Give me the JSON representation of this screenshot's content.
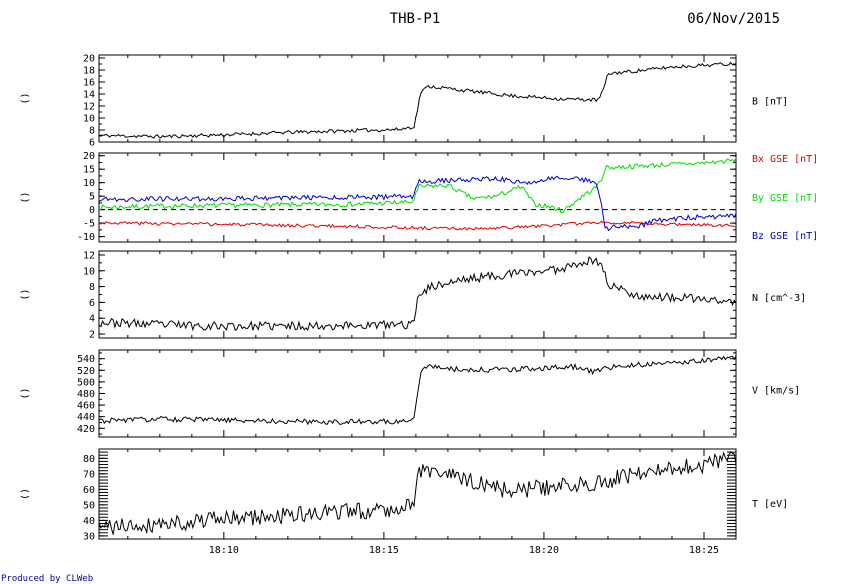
{
  "header": {
    "title": "THB-P1",
    "date": "06/Nov/2015"
  },
  "footer": {
    "credit": "Produced by CLWeb"
  },
  "x_ticks": [
    {
      "label": "18:10",
      "t": 10
    },
    {
      "label": "18:15",
      "t": 15
    },
    {
      "label": "18:20",
      "t": 20
    },
    {
      "label": "18:25",
      "t": 25
    }
  ],
  "colors": {
    "black": "#000000",
    "bx": "#dd0000",
    "by": "#00dd00",
    "bz": "#0000cc"
  },
  "chart_data": [
    {
      "type": "line",
      "left_label": "()",
      "ylim": [
        6,
        20.5
      ],
      "yticks": [
        6,
        8,
        10,
        12,
        14,
        16,
        18,
        20
      ],
      "minor_ticks": false,
      "zero_line": false,
      "xlim_minutes": [
        6.1,
        26
      ],
      "series": [
        {
          "name": "B [nT]",
          "color": "#000000",
          "base": [
            [
              6.1,
              7.1
            ],
            [
              8,
              6.9
            ],
            [
              10,
              7.2
            ],
            [
              12,
              7.6
            ],
            [
              14,
              7.9
            ],
            [
              15.5,
              8.1
            ],
            [
              15.95,
              8.6
            ],
            [
              16.15,
              14.3
            ],
            [
              16.4,
              15.3
            ],
            [
              17.5,
              14.6
            ],
            [
              19,
              13.7
            ],
            [
              20.5,
              13.2
            ],
            [
              21.7,
              13.0
            ],
            [
              21.9,
              15.3
            ],
            [
              22,
              17.4
            ],
            [
              23,
              17.9
            ],
            [
              24,
              18.5
            ],
            [
              26,
              19.1
            ]
          ],
          "amp": 0.3,
          "seed": 11
        }
      ],
      "right_labels": [
        {
          "text": "B [nT]",
          "y": 12.8,
          "color": "#000000"
        }
      ]
    },
    {
      "type": "line",
      "left_label": "()",
      "ylim": [
        -12,
        21
      ],
      "yticks": [
        -10,
        -5,
        0,
        5,
        10,
        15,
        20
      ],
      "minor_ticks": false,
      "zero_line": true,
      "xlim_minutes": [
        6.1,
        26
      ],
      "series": [
        {
          "name": "Bx GSE [nT]",
          "color": "#dd0000",
          "base": [
            [
              6.1,
              -4.8
            ],
            [
              10,
              -5.5
            ],
            [
              14,
              -6.2
            ],
            [
              16,
              -6.8
            ],
            [
              18,
              -7.2
            ],
            [
              20,
              -6.0
            ],
            [
              21.8,
              -4.6
            ],
            [
              23,
              -5.2
            ],
            [
              26,
              -5.8
            ]
          ],
          "amp": 0.6,
          "seed": 3
        },
        {
          "name": "By GSE [nT]",
          "color": "#00dd00",
          "base": [
            [
              6.1,
              0.8
            ],
            [
              8,
              1.3
            ],
            [
              10,
              1.6
            ],
            [
              14,
              2.0
            ],
            [
              15.9,
              2.8
            ],
            [
              16.1,
              8.5
            ],
            [
              17,
              9.0
            ],
            [
              17.8,
              4.0
            ],
            [
              18.5,
              5.0
            ],
            [
              19.3,
              8.5
            ],
            [
              19.7,
              2.0
            ],
            [
              20.2,
              1.0
            ],
            [
              20.6,
              -0.5
            ],
            [
              21.2,
              5.0
            ],
            [
              21.6,
              8.0
            ],
            [
              21.8,
              11.0
            ],
            [
              21.9,
              15.5
            ],
            [
              23,
              16.2
            ],
            [
              25,
              17.3
            ],
            [
              26,
              18.3
            ]
          ],
          "amp": 0.9,
          "seed": 7
        },
        {
          "name": "Bz GSE [nT]",
          "color": "#0000cc",
          "base": [
            [
              6.1,
              3.7
            ],
            [
              8,
              4.0
            ],
            [
              10,
              4.1
            ],
            [
              14,
              4.6
            ],
            [
              15.9,
              4.8
            ],
            [
              16.1,
              10.3
            ],
            [
              17,
              10.8
            ],
            [
              18.5,
              11.6
            ],
            [
              19.5,
              9.5
            ],
            [
              20.5,
              12.4
            ],
            [
              21.5,
              10.5
            ],
            [
              21.7,
              8.0
            ],
            [
              21.8,
              2.0
            ],
            [
              21.9,
              -7.5
            ],
            [
              22.3,
              -6.0
            ],
            [
              22.8,
              -6.8
            ],
            [
              23.5,
              -4.0
            ],
            [
              24.5,
              -3.0
            ],
            [
              26,
              -2.2
            ]
          ],
          "amp": 0.9,
          "seed": 19
        }
      ],
      "right_labels": [
        {
          "text": "Bx GSE [nT]",
          "y": 19,
          "color": "#dd0000"
        },
        {
          "text": "By GSE [nT]",
          "y": 4.5,
          "color": "#00dd00"
        },
        {
          "text": "Bz GSE [nT]",
          "y": -9.5,
          "color": "#0000cc"
        }
      ]
    },
    {
      "type": "line",
      "left_label": "()",
      "ylim": [
        1.5,
        12.5
      ],
      "yticks": [
        2,
        4,
        6,
        8,
        10,
        12
      ],
      "minor_ticks": false,
      "zero_line": false,
      "xlim_minutes": [
        6.1,
        26
      ],
      "series": [
        {
          "name": "N [cm^-3]",
          "color": "#000000",
          "base": [
            [
              6.1,
              3.5
            ],
            [
              8,
              3.2
            ],
            [
              10,
              3.0
            ],
            [
              12,
              3.0
            ],
            [
              14,
              3.1
            ],
            [
              15.9,
              3.2
            ],
            [
              16.1,
              7.2
            ],
            [
              16.5,
              8.0
            ],
            [
              17.5,
              8.9
            ],
            [
              18.5,
              9.4
            ],
            [
              19.5,
              9.8
            ],
            [
              20.5,
              10.2
            ],
            [
              21,
              11.0
            ],
            [
              21.6,
              11.3
            ],
            [
              21.8,
              10.8
            ],
            [
              22,
              8.3
            ],
            [
              22.5,
              7.5
            ],
            [
              23,
              6.8
            ],
            [
              24,
              6.6
            ],
            [
              25,
              6.4
            ],
            [
              26,
              6.0
            ]
          ],
          "amp": 0.55,
          "seed": 23
        }
      ],
      "right_labels": [
        {
          "text": "N [cm^-3]",
          "y": 6.6,
          "color": "#000000"
        }
      ]
    },
    {
      "type": "line",
      "left_label": "()",
      "ylim": [
        405,
        555
      ],
      "yticks": [
        420,
        440,
        460,
        480,
        500,
        520,
        540
      ],
      "minor_ticks": false,
      "zero_line": false,
      "xlim_minutes": [
        6.1,
        26
      ],
      "series": [
        {
          "name": "V [km/s]",
          "color": "#000000",
          "base": [
            [
              6.1,
              433
            ],
            [
              8,
              436
            ],
            [
              10,
              434
            ],
            [
              12,
              432
            ],
            [
              14,
              431
            ],
            [
              15.7,
              432
            ],
            [
              15.95,
              440
            ],
            [
              16.15,
              520
            ],
            [
              16.4,
              528
            ],
            [
              17.5,
              520
            ],
            [
              19,
              522
            ],
            [
              20,
              524
            ],
            [
              21,
              526
            ],
            [
              21.5,
              518
            ],
            [
              22,
              525
            ],
            [
              23,
              530
            ],
            [
              24,
              533
            ],
            [
              25,
              537
            ],
            [
              26,
              542
            ]
          ],
          "amp": 4.5,
          "seed": 31
        }
      ],
      "right_labels": [
        {
          "text": "V [km/s]",
          "y": 486,
          "color": "#000000"
        }
      ]
    },
    {
      "type": "line",
      "left_label": "()",
      "ylim": [
        28,
        86
      ],
      "yticks": [
        30,
        40,
        50,
        60,
        70,
        80
      ],
      "minor_ticks": true,
      "zero_line": false,
      "xlim_minutes": [
        6.1,
        26
      ],
      "series": [
        {
          "name": "T [eV]",
          "color": "#000000",
          "base": [
            [
              6.1,
              35
            ],
            [
              8,
              38
            ],
            [
              10,
              41
            ],
            [
              12,
              43
            ],
            [
              14,
              46
            ],
            [
              15,
              47
            ],
            [
              15.9,
              50
            ],
            [
              16.1,
              72
            ],
            [
              16.5,
              72
            ],
            [
              17.5,
              66
            ],
            [
              19,
              59
            ],
            [
              20,
              61
            ],
            [
              21,
              63
            ],
            [
              22,
              66
            ],
            [
              23,
              70
            ],
            [
              24,
              73
            ],
            [
              25,
              76
            ],
            [
              26,
              80
            ]
          ],
          "amp": 5.5,
          "seed": 41
        }
      ],
      "right_labels": [
        {
          "text": "T [eV]",
          "y": 51,
          "color": "#000000"
        }
      ]
    }
  ]
}
